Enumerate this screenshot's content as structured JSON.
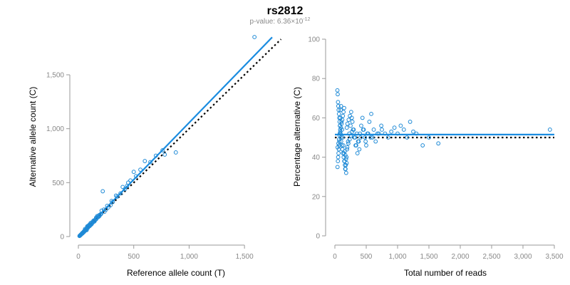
{
  "header": {
    "title": "rs2812",
    "subtitle_prefix": "p-value: 6.36×10",
    "subtitle_exponent": "-12"
  },
  "colors": {
    "points": "#1f8ad6",
    "fit_line": "#1a8ce0",
    "reference_line": "#000000",
    "axis": "#9a9a9a",
    "tick_label": "#888888"
  },
  "chart_data": [
    {
      "type": "scatter",
      "title": "",
      "xlabel": "Reference allele count (T)",
      "ylabel": "Alternative allele count (C)",
      "xlim": [
        0,
        1750
      ],
      "ylim": [
        0,
        1850
      ],
      "x_ticks": [
        0,
        500,
        1000,
        1500
      ],
      "x_tick_labels": [
        "0",
        "500",
        "1,000",
        "1,500"
      ],
      "y_ticks": [
        0,
        500,
        1000,
        1500
      ],
      "y_tick_labels": [
        "0",
        "500",
        "1,000",
        "1,500"
      ],
      "grid": false,
      "lines": [
        {
          "role": "fit",
          "style": "solid",
          "x": [
            0,
            1750
          ],
          "y": [
            0,
            1848
          ]
        },
        {
          "role": "expected",
          "style": "dotted",
          "x": [
            0,
            1830
          ],
          "y": [
            0,
            1830
          ]
        }
      ],
      "points": {
        "x": [
          1590,
          880,
          780,
          600,
          560,
          500,
          470,
          440,
          420,
          380,
          350,
          310,
          290,
          270,
          250,
          235,
          220,
          205,
          200,
          190,
          180,
          175,
          165,
          160,
          150,
          145,
          140,
          130,
          125,
          120,
          115,
          110,
          105,
          100,
          95,
          90,
          85,
          80,
          75,
          72,
          70,
          65,
          62,
          60,
          58,
          55,
          52,
          50,
          48,
          45,
          42,
          40,
          38,
          35,
          32,
          30,
          28,
          25,
          22,
          20,
          18,
          15,
          12,
          10,
          60,
          80,
          100,
          130,
          160,
          190,
          230,
          260,
          300,
          340,
          400,
          450,
          520,
          650,
          700,
          760,
          75,
          88,
          110,
          140,
          170,
          210
        ],
        "y": [
          1850,
          780,
          760,
          700,
          620,
          600,
          520,
          470,
          440,
          400,
          370,
          320,
          290,
          270,
          250,
          230,
          420,
          210,
          205,
          190,
          180,
          185,
          170,
          160,
          150,
          140,
          145,
          130,
          125,
          115,
          120,
          105,
          110,
          95,
          100,
          90,
          80,
          85,
          75,
          70,
          65,
          60,
          62,
          55,
          58,
          50,
          45,
          48,
          40,
          42,
          38,
          35,
          30,
          33,
          28,
          25,
          22,
          20,
          18,
          15,
          12,
          10,
          8,
          5,
          70,
          95,
          110,
          140,
          175,
          200,
          250,
          285,
          330,
          380,
          460,
          500,
          560,
          690,
          750,
          800,
          60,
          100,
          125,
          150,
          190,
          240
        ]
      }
    },
    {
      "type": "scatter",
      "title": "",
      "xlabel": "Total number of reads",
      "ylabel": "Percentage alternative (C)",
      "xlim": [
        0,
        3500
      ],
      "ylim": [
        0,
        100
      ],
      "x_ticks": [
        0,
        500,
        1000,
        1500,
        2000,
        2500,
        3000,
        3500
      ],
      "x_tick_labels": [
        "0",
        "500",
        "1,000",
        "1,500",
        "2,000",
        "2,500",
        "3,000",
        "3,500"
      ],
      "y_ticks": [
        0,
        20,
        40,
        60,
        80,
        100
      ],
      "y_tick_labels": [
        "0",
        "20",
        "40",
        "60",
        "80",
        "100"
      ],
      "grid": false,
      "lines": [
        {
          "role": "fit",
          "style": "solid",
          "x": [
            0,
            3500
          ],
          "y": [
            51.5,
            51.5
          ]
        },
        {
          "role": "expected",
          "style": "dotted",
          "x": [
            0,
            3500
          ],
          "y": [
            50,
            50
          ]
        }
      ],
      "points": {
        "x": [
          40,
          45,
          50,
          55,
          60,
          65,
          70,
          75,
          80,
          85,
          90,
          95,
          100,
          110,
          120,
          130,
          140,
          150,
          160,
          170,
          180,
          190,
          200,
          220,
          240,
          260,
          280,
          300,
          320,
          340,
          360,
          380,
          400,
          420,
          440,
          460,
          480,
          500,
          520,
          550,
          580,
          600,
          650,
          700,
          750,
          800,
          850,
          900,
          950,
          1000,
          1050,
          1100,
          1150,
          1200,
          1250,
          1300,
          1400,
          1500,
          1650,
          3430,
          42,
          48,
          52,
          58,
          62,
          68,
          72,
          78,
          82,
          88,
          92,
          98,
          105,
          115,
          125,
          135,
          145,
          155,
          165,
          175,
          185,
          195,
          210,
          230,
          250,
          270,
          290,
          310,
          330,
          350,
          370,
          390,
          410,
          450,
          490,
          530,
          570,
          620,
          680,
          740,
          44,
          56,
          66,
          76,
          86,
          96,
          108,
          118,
          128,
          138,
          148,
          158,
          168,
          178,
          188,
          198,
          215,
          235,
          255,
          275
        ],
        "y": [
          74,
          72,
          68,
          66,
          64,
          62,
          60,
          58,
          56,
          54,
          52,
          50,
          48,
          46,
          44,
          42,
          40,
          38,
          36,
          34,
          32,
          55,
          57,
          59,
          61,
          63,
          58,
          54,
          50,
          46,
          42,
          48,
          52,
          56,
          60,
          54,
          50,
          46,
          52,
          58,
          62,
          50,
          48,
          52,
          54,
          52,
          50,
          53,
          55,
          52,
          56,
          54,
          50,
          58,
          53,
          52,
          46,
          50,
          47,
          54,
          35,
          38,
          40,
          42,
          44,
          46,
          48,
          52,
          56,
          60,
          64,
          66,
          58,
          54,
          50,
          46,
          42,
          38,
          34,
          36,
          40,
          44,
          48,
          52,
          56,
          60,
          54,
          50,
          46,
          52,
          48,
          44,
          50,
          54,
          48,
          52,
          50,
          54,
          52,
          56,
          45,
          47,
          49,
          51,
          53,
          55,
          57,
          59,
          61,
          63,
          65,
          43,
          41,
          39,
          37,
          45,
          47,
          49,
          51,
          53
        ]
      }
    }
  ]
}
